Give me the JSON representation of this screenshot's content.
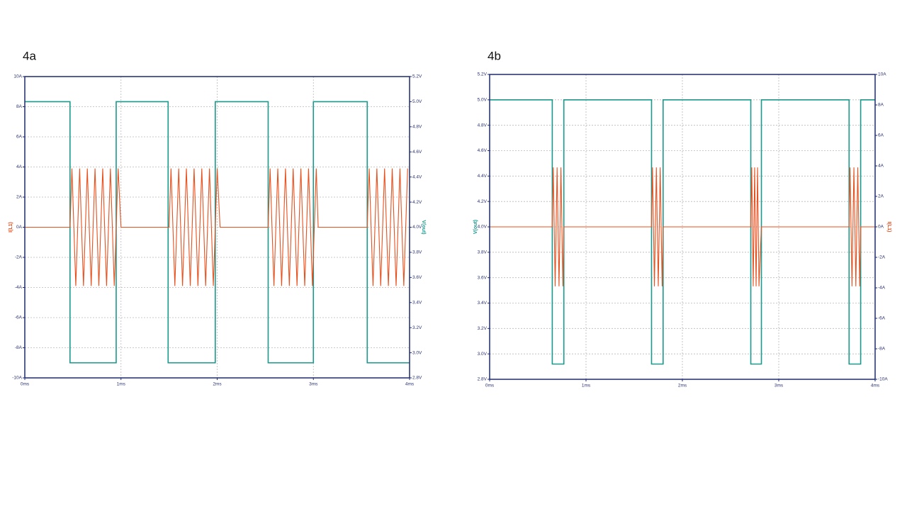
{
  "chart_data": [
    {
      "type": "line",
      "title": "4a",
      "ylabel": "I(L1)",
      "y2label": "V(out)",
      "xlim": [
        0,
        4
      ],
      "xticks": [
        {
          "value": 0,
          "label": "0ms"
        },
        {
          "value": 1,
          "label": "1ms"
        },
        {
          "value": 2,
          "label": "2ms"
        },
        {
          "value": 3,
          "label": "3ms"
        },
        {
          "value": 4,
          "label": "4ms"
        }
      ],
      "ylim": [
        -10,
        10
      ],
      "yticks": [
        {
          "value": -10,
          "label": "-10A"
        },
        {
          "value": -8,
          "label": "-8A"
        },
        {
          "value": -6,
          "label": "-6A"
        },
        {
          "value": -4,
          "label": "-4A"
        },
        {
          "value": -2,
          "label": "-2A"
        },
        {
          "value": 0,
          "label": "0A"
        },
        {
          "value": 2,
          "label": "2A"
        },
        {
          "value": 4,
          "label": "4A"
        },
        {
          "value": 6,
          "label": "6A"
        },
        {
          "value": 8,
          "label": "8A"
        },
        {
          "value": 10,
          "label": "10A"
        }
      ],
      "y2lim": [
        2.8,
        5.2
      ],
      "y2ticks": [
        {
          "value": 2.8,
          "label": "2.8V"
        },
        {
          "value": 3.0,
          "label": "3.0V"
        },
        {
          "value": 3.2,
          "label": "3.2V"
        },
        {
          "value": 3.4,
          "label": "3.4V"
        },
        {
          "value": 3.6,
          "label": "3.6V"
        },
        {
          "value": 3.8,
          "label": "3.8V"
        },
        {
          "value": 4.0,
          "label": "4.0V"
        },
        {
          "value": 4.2,
          "label": "4.2V"
        },
        {
          "value": 4.4,
          "label": "4.4V"
        },
        {
          "value": 4.6,
          "label": "4.6V"
        },
        {
          "value": 4.8,
          "label": "4.8V"
        },
        {
          "value": 5.0,
          "label": "5.0V"
        },
        {
          "value": 5.2,
          "label": "5.2V"
        }
      ],
      "grid": true,
      "series": [
        {
          "name": "V(out)",
          "color": "#1a9a8c",
          "axis": "y2",
          "x": [
            0,
            0.47,
            0.47,
            0.95,
            0.95,
            1.49,
            1.49,
            1.98,
            1.98,
            2.53,
            2.53,
            3.0,
            3.0,
            3.56,
            3.56,
            4
          ],
          "values": [
            5,
            5,
            2.92,
            2.92,
            5,
            5,
            2.92,
            2.92,
            5,
            5,
            2.92,
            2.92,
            5,
            5,
            2.92,
            2.92
          ]
        },
        {
          "name": "I(L1)",
          "color": "#e8501e",
          "axis": "y",
          "x": [
            0,
            0.47,
            0.49,
            0.53,
            0.57,
            0.61,
            0.65,
            0.69,
            0.73,
            0.77,
            0.81,
            0.85,
            0.89,
            0.93,
            0.97,
            1.0,
            1.5,
            1.52,
            1.56,
            1.6,
            1.64,
            1.68,
            1.72,
            1.76,
            1.8,
            1.84,
            1.88,
            1.92,
            1.96,
            2.0,
            2.03,
            2.53,
            2.55,
            2.59,
            2.63,
            2.67,
            2.71,
            2.75,
            2.79,
            2.83,
            2.87,
            2.91,
            2.95,
            2.99,
            3.03,
            3.05,
            3.56,
            3.58,
            3.62,
            3.66,
            3.7,
            3.74,
            3.78,
            3.82,
            3.86,
            3.9,
            3.94,
            3.98
          ],
          "values": [
            0,
            0,
            3.9,
            -3.9,
            3.9,
            -3.9,
            3.9,
            -3.9,
            3.9,
            -3.9,
            3.9,
            -3.9,
            3.9,
            -3.9,
            3.9,
            0,
            0,
            3.9,
            -3.9,
            3.9,
            -3.9,
            3.9,
            -3.9,
            3.9,
            -3.9,
            3.9,
            -3.9,
            3.9,
            -3.9,
            3.9,
            0,
            0,
            3.9,
            -3.9,
            3.9,
            -3.9,
            3.9,
            -3.9,
            3.9,
            -3.9,
            3.9,
            -3.9,
            3.9,
            -3.9,
            3.9,
            0,
            0,
            3.9,
            -3.9,
            3.9,
            -3.9,
            3.9,
            -3.9,
            3.9,
            -3.9,
            3.9,
            -3.9,
            3.9
          ]
        }
      ]
    },
    {
      "type": "line",
      "title": "4b",
      "ylabel": "V(out)",
      "y2label": "I(L1)",
      "xlim": [
        0,
        4
      ],
      "xticks": [
        {
          "value": 0,
          "label": "0ms"
        },
        {
          "value": 1,
          "label": "1ms"
        },
        {
          "value": 2,
          "label": "2ms"
        },
        {
          "value": 3,
          "label": "3ms"
        },
        {
          "value": 4,
          "label": "4ms"
        }
      ],
      "ylim": [
        2.8,
        5.2
      ],
      "yticks": [
        {
          "value": 2.8,
          "label": "2.8V"
        },
        {
          "value": 3.0,
          "label": "3.0V"
        },
        {
          "value": 3.2,
          "label": "3.2V"
        },
        {
          "value": 3.4,
          "label": "3.4V"
        },
        {
          "value": 3.6,
          "label": "3.6V"
        },
        {
          "value": 3.8,
          "label": "3.8V"
        },
        {
          "value": 4.0,
          "label": "4.0V"
        },
        {
          "value": 4.2,
          "label": "4.2V"
        },
        {
          "value": 4.4,
          "label": "4.4V"
        },
        {
          "value": 4.6,
          "label": "4.6V"
        },
        {
          "value": 4.8,
          "label": "4.8V"
        },
        {
          "value": 5.0,
          "label": "5.0V"
        },
        {
          "value": 5.2,
          "label": "5.2V"
        }
      ],
      "y2lim": [
        -10,
        10
      ],
      "y2ticks": [
        {
          "value": -10,
          "label": "-10A"
        },
        {
          "value": -8,
          "label": "-8A"
        },
        {
          "value": -6,
          "label": "-6A"
        },
        {
          "value": -4,
          "label": "-4A"
        },
        {
          "value": -2,
          "label": "-2A"
        },
        {
          "value": 0,
          "label": "0A"
        },
        {
          "value": 2,
          "label": "2A"
        },
        {
          "value": 4,
          "label": "4A"
        },
        {
          "value": 6,
          "label": "6A"
        },
        {
          "value": 8,
          "label": "8A"
        },
        {
          "value": 10,
          "label": "10A"
        }
      ],
      "grid": true,
      "series": [
        {
          "name": "V(out)",
          "color": "#1a9a8c",
          "axis": "y",
          "x": [
            0,
            0.65,
            0.65,
            0.77,
            0.77,
            1.68,
            1.68,
            1.8,
            1.8,
            2.71,
            2.71,
            2.82,
            2.82,
            3.73,
            3.73,
            3.85,
            3.85,
            4
          ],
          "values": [
            5,
            5,
            2.92,
            2.92,
            5,
            5,
            2.92,
            2.92,
            5,
            5,
            2.92,
            2.92,
            5,
            5,
            2.92,
            2.92,
            5,
            5
          ]
        },
        {
          "name": "I(L1)",
          "color": "#e8501e",
          "axis": "y2",
          "x": [
            0,
            0.65,
            0.66,
            0.68,
            0.7,
            0.72,
            0.74,
            0.76,
            0.77,
            1.68,
            1.69,
            1.71,
            1.73,
            1.75,
            1.77,
            1.79,
            1.8,
            2.71,
            2.72,
            2.735,
            2.75,
            2.765,
            2.78,
            2.795,
            2.82,
            3.73,
            3.74,
            3.76,
            3.78,
            3.8,
            3.82,
            3.84,
            3.85,
            4
          ],
          "values": [
            0,
            0,
            3.9,
            -3.9,
            3.9,
            -3.9,
            3.9,
            -3.9,
            0,
            0,
            3.9,
            -3.9,
            3.9,
            -3.9,
            3.9,
            -3.9,
            0,
            0,
            3.9,
            -3.9,
            3.9,
            -3.9,
            3.9,
            -3.9,
            0,
            0,
            3.9,
            -3.9,
            3.9,
            -3.9,
            3.9,
            -3.9,
            0,
            0
          ]
        }
      ]
    }
  ]
}
